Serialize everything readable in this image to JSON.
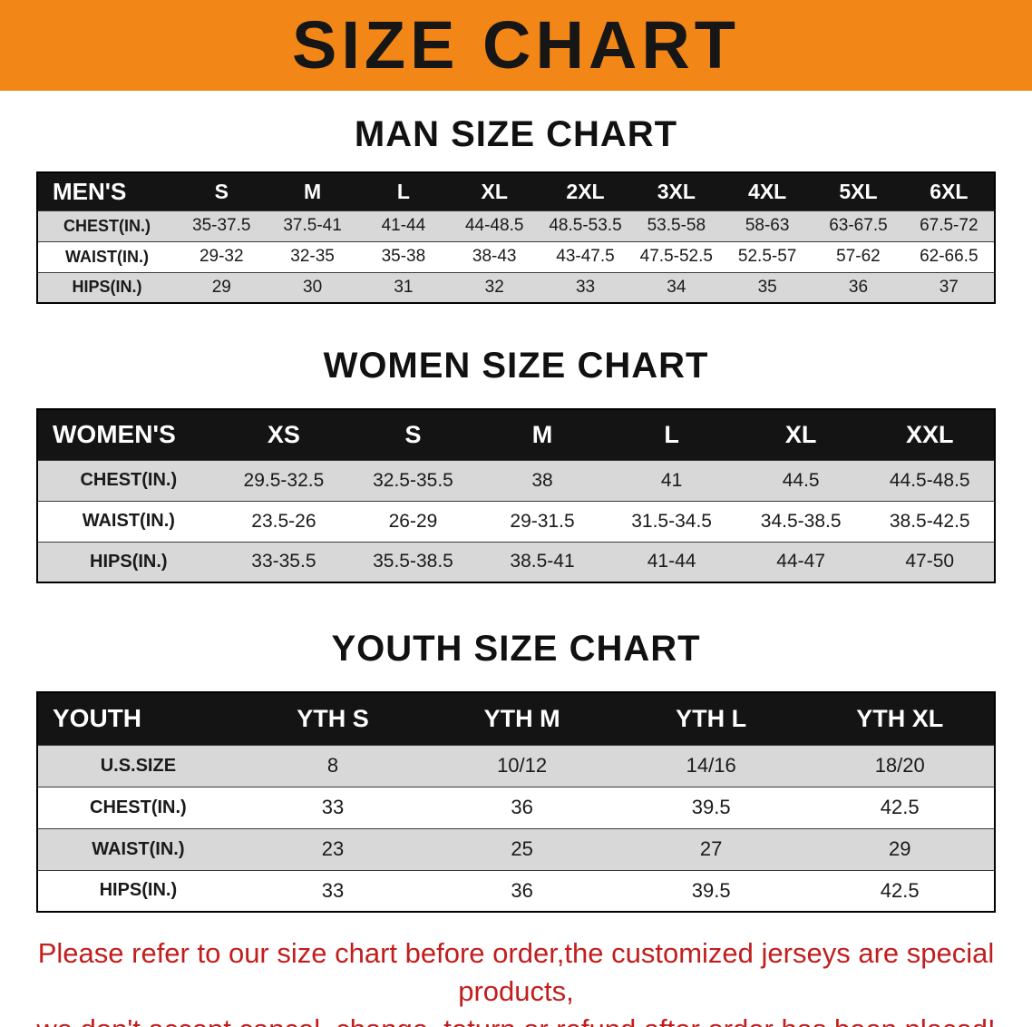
{
  "banner": {
    "title": "SIZE CHART"
  },
  "colors": {
    "banner_bg": "#F28718",
    "banner_text": "#161616",
    "table_header_bg": "#141414",
    "table_header_text": "#FFFFFF",
    "row_shaded_bg": "#D8D8D8",
    "row_plain_bg": "#FFFFFF",
    "notice_text": "#C21E1E"
  },
  "tables": [
    {
      "title": "MAN SIZE CHART",
      "header": [
        "MEN'S",
        "S",
        "M",
        "L",
        "XL",
        "2XL",
        "3XL",
        "4XL",
        "5XL",
        "6XL"
      ],
      "rows": [
        [
          "CHEST(IN.)",
          "35-37.5",
          "37.5-41",
          "41-44",
          "44-48.5",
          "48.5-53.5",
          "53.5-58",
          "58-63",
          "63-67.5",
          "67.5-72"
        ],
        [
          "WAIST(IN.)",
          "29-32",
          "32-35",
          "35-38",
          "38-43",
          "43-47.5",
          "47.5-52.5",
          "52.5-57",
          "57-62",
          "62-66.5"
        ],
        [
          "HIPS(IN.)",
          "29",
          "30",
          "31",
          "32",
          "33",
          "34",
          "35",
          "36",
          "37"
        ]
      ]
    },
    {
      "title": "WOMEN SIZE CHART",
      "header": [
        "WOMEN'S",
        "XS",
        "S",
        "M",
        "L",
        "XL",
        "XXL"
      ],
      "rows": [
        [
          "CHEST(IN.)",
          "29.5-32.5",
          "32.5-35.5",
          "38",
          "41",
          "44.5",
          "44.5-48.5"
        ],
        [
          "WAIST(IN.)",
          "23.5-26",
          "26-29",
          "29-31.5",
          "31.5-34.5",
          "34.5-38.5",
          "38.5-42.5"
        ],
        [
          "HIPS(IN.)",
          "33-35.5",
          "35.5-38.5",
          "38.5-41",
          "41-44",
          "44-47",
          "47-50"
        ]
      ]
    },
    {
      "title": "YOUTH SIZE CHART",
      "header": [
        "YOUTH",
        "YTH S",
        "YTH M",
        "YTH L",
        "YTH XL"
      ],
      "rows": [
        [
          "U.S.SIZE",
          "8",
          "10/12",
          "14/16",
          "18/20"
        ],
        [
          "CHEST(IN.)",
          "33",
          "36",
          "39.5",
          "42.5"
        ],
        [
          "WAIST(IN.)",
          "23",
          "25",
          "27",
          "29"
        ],
        [
          "HIPS(IN.)",
          "33",
          "36",
          "39.5",
          "42.5"
        ]
      ]
    }
  ],
  "notice": {
    "line1": "Please refer to our size chart before order,the customized jerseys are special products,",
    "line2": "we don't accept cancel, change, teturn or refund after order has been placed!"
  }
}
